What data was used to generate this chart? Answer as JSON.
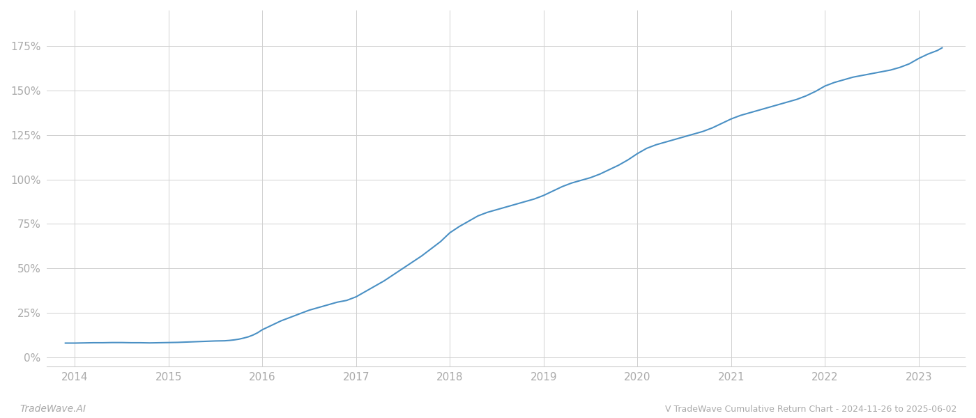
{
  "title": "V TradeWave Cumulative Return Chart - 2024-11-26 to 2025-06-02",
  "watermark": "TradeWave.AI",
  "line_color": "#4a90c4",
  "background_color": "#ffffff",
  "grid_color": "#d0d0d0",
  "axis_label_color": "#aaaaaa",
  "title_color": "#aaaaaa",
  "watermark_color": "#aaaaaa",
  "x_years": [
    2013.9,
    2014.0,
    2014.1,
    2014.2,
    2014.3,
    2014.4,
    2014.5,
    2014.6,
    2014.7,
    2014.8,
    2014.9,
    2015.0,
    2015.1,
    2015.2,
    2015.3,
    2015.4,
    2015.5,
    2015.6,
    2015.65,
    2015.7,
    2015.75,
    2015.8,
    2015.85,
    2015.9,
    2015.95,
    2016.0,
    2016.1,
    2016.2,
    2016.3,
    2016.4,
    2016.5,
    2016.6,
    2016.7,
    2016.8,
    2016.9,
    2017.0,
    2017.1,
    2017.2,
    2017.3,
    2017.4,
    2017.5,
    2017.6,
    2017.7,
    2017.8,
    2017.9,
    2018.0,
    2018.1,
    2018.2,
    2018.3,
    2018.4,
    2018.5,
    2018.6,
    2018.7,
    2018.8,
    2018.9,
    2019.0,
    2019.1,
    2019.2,
    2019.3,
    2019.4,
    2019.5,
    2019.6,
    2019.7,
    2019.8,
    2019.9,
    2020.0,
    2020.1,
    2020.2,
    2020.3,
    2020.4,
    2020.5,
    2020.6,
    2020.7,
    2020.8,
    2020.9,
    2021.0,
    2021.1,
    2021.2,
    2021.3,
    2021.4,
    2021.5,
    2021.6,
    2021.7,
    2021.8,
    2021.9,
    2022.0,
    2022.1,
    2022.2,
    2022.3,
    2022.4,
    2022.5,
    2022.6,
    2022.7,
    2022.8,
    2022.9,
    2023.0,
    2023.1,
    2023.2,
    2023.25
  ],
  "y_values": [
    8.0,
    8.0,
    8.1,
    8.2,
    8.2,
    8.3,
    8.3,
    8.2,
    8.2,
    8.1,
    8.2,
    8.3,
    8.4,
    8.6,
    8.8,
    9.0,
    9.2,
    9.3,
    9.5,
    9.8,
    10.2,
    10.8,
    11.5,
    12.5,
    13.8,
    15.5,
    18.0,
    20.5,
    22.5,
    24.5,
    26.5,
    28.0,
    29.5,
    31.0,
    32.0,
    34.0,
    37.0,
    40.0,
    43.0,
    46.5,
    50.0,
    53.5,
    57.0,
    61.0,
    65.0,
    70.0,
    73.5,
    76.5,
    79.5,
    81.5,
    83.0,
    84.5,
    86.0,
    87.5,
    89.0,
    91.0,
    93.5,
    96.0,
    98.0,
    99.5,
    101.0,
    103.0,
    105.5,
    108.0,
    111.0,
    114.5,
    117.5,
    119.5,
    121.0,
    122.5,
    124.0,
    125.5,
    127.0,
    129.0,
    131.5,
    134.0,
    136.0,
    137.5,
    139.0,
    140.5,
    142.0,
    143.5,
    145.0,
    147.0,
    149.5,
    152.5,
    154.5,
    156.0,
    157.5,
    158.5,
    159.5,
    160.5,
    161.5,
    163.0,
    165.0,
    168.0,
    170.5,
    172.5,
    174.0
  ],
  "xtick_labels": [
    "2014",
    "2015",
    "2016",
    "2017",
    "2018",
    "2019",
    "2020",
    "2021",
    "2022",
    "2023"
  ],
  "xtick_positions": [
    2014,
    2015,
    2016,
    2017,
    2018,
    2019,
    2020,
    2021,
    2022,
    2023
  ],
  "ytick_values": [
    0,
    25,
    50,
    75,
    100,
    125,
    150,
    175
  ],
  "ytick_labels": [
    "0%",
    "25%",
    "50%",
    "75%",
    "100%",
    "125%",
    "150%",
    "175%"
  ],
  "xlim": [
    2013.7,
    2023.5
  ],
  "ylim": [
    -5,
    195
  ],
  "line_width": 1.5
}
